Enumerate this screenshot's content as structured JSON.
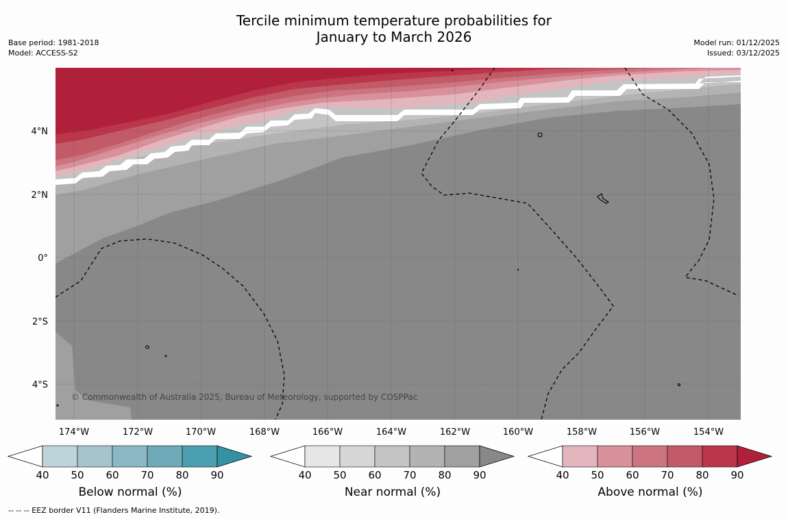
{
  "title_line1": "Tercile minimum temperature probabilities for",
  "title_line2": "January to March 2026",
  "meta_left": {
    "base_period": "Base period: 1981-2018",
    "model": "Model: ACCESS-S2"
  },
  "meta_right": {
    "model_run": "Model run: 01/12/2025",
    "issued": "Issued: 03/12/2025"
  },
  "axes": {
    "lon_labels": [
      "174°W",
      "172°W",
      "170°W",
      "168°W",
      "166°W",
      "164°W",
      "162°W",
      "160°W",
      "158°W",
      "156°W",
      "154°W"
    ],
    "lat_labels": [
      "4°N",
      "2°N",
      "0°",
      "2°S",
      "4°S"
    ]
  },
  "copyright": "© Commonwealth of Australia 2025, Bureau of Meteorology, supported by COSPPac",
  "colorbars": [
    {
      "label": "Below normal (%)",
      "ticks": [
        "40",
        "50",
        "60",
        "70",
        "80",
        "90"
      ],
      "colors": [
        "#bdd4da",
        "#a6c5ca",
        "#8bb8c4",
        "#6eaab8",
        "#4b9fb0",
        "#3592a5"
      ]
    },
    {
      "label": "Near normal (%)",
      "ticks": [
        "40",
        "50",
        "60",
        "70",
        "80",
        "90"
      ],
      "colors": [
        "#e6e6e6",
        "#d6d6d6",
        "#c4c4c4",
        "#b3b3b3",
        "#a0a0a0",
        "#888888"
      ]
    },
    {
      "label": "Above normal (%)",
      "ticks": [
        "40",
        "50",
        "60",
        "70",
        "80",
        "90"
      ],
      "colors": [
        "#e2b6bc",
        "#d8909b",
        "#cc7580",
        "#c35a68",
        "#bb364b",
        "#b0203a"
      ]
    }
  ],
  "footnote": "--  --  -- EEZ border V11 (Flanders Marine Institute, 2019)."
}
